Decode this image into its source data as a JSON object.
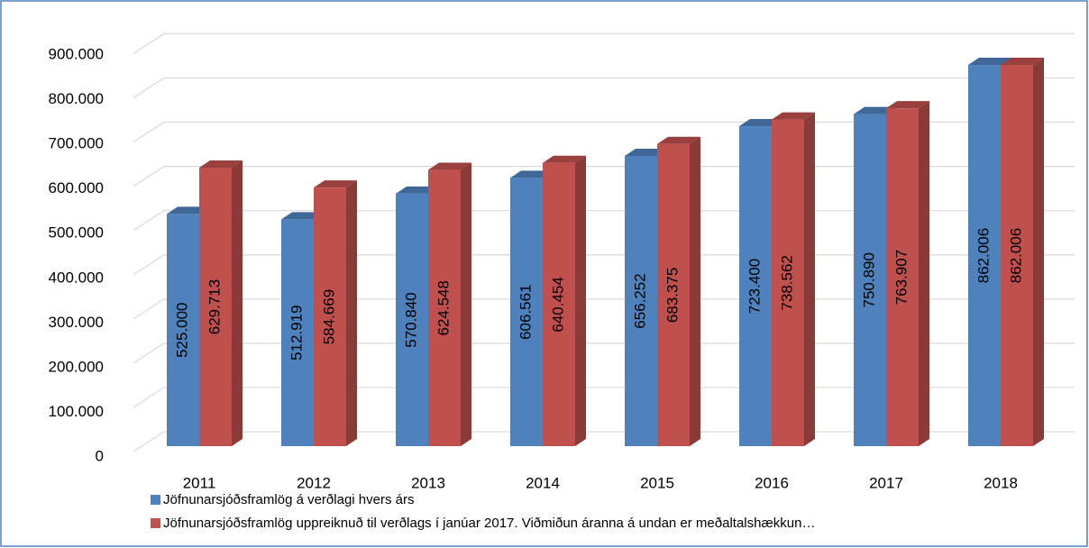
{
  "chart_data": {
    "type": "bar3d",
    "categories": [
      "2011",
      "2012",
      "2013",
      "2014",
      "2015",
      "2016",
      "2017",
      "2018"
    ],
    "series": [
      {
        "name": "Jöfnunarsjóðsframlög á verðlagi hvers árs",
        "color": "#4f81bd",
        "values": [
          525000,
          512919,
          570840,
          606561,
          656252,
          723400,
          750890,
          862006
        ],
        "value_labels": [
          "525.000",
          "512.919",
          "570.840",
          "606.561",
          "656.252",
          "723.400",
          "750.890",
          "862.006"
        ]
      },
      {
        "name": "Jöfnunarsjóðsframlög uppreiknuð til verðlags í janúar 2017. Viðmiðun áranna á undan er meðaltalshækkun…",
        "color": "#c0504d",
        "values": [
          629713,
          584669,
          624548,
          640454,
          683375,
          738562,
          763907,
          862006
        ],
        "value_labels": [
          "629.713",
          "584.669",
          "624.548",
          "640.454",
          "683.375",
          "738.562",
          "763.907",
          "862.006"
        ]
      }
    ],
    "ylim": [
      0,
      900000
    ],
    "yticks": [
      0,
      {
        "value": 100000,
        "label": "100.000"
      },
      {
        "value": 200000,
        "label": "200.000"
      },
      {
        "value": 300000,
        "label": "300.000"
      },
      {
        "value": 400000,
        "label": "400.000"
      },
      {
        "value": 500000,
        "label": "500.000"
      },
      {
        "value": 600000,
        "label": "600.000"
      },
      {
        "value": 700000,
        "label": "700.000"
      },
      {
        "value": 800000,
        "label": "800.000"
      },
      {
        "value": 900000,
        "label": "900.000"
      }
    ],
    "grid": true,
    "legend": "bottom-left"
  }
}
